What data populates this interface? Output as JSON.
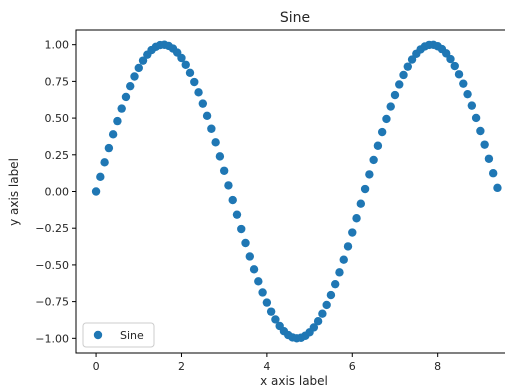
{
  "chart_data": {
    "type": "scatter",
    "title": "Sine",
    "xlabel": "x axis label",
    "ylabel": "y axis label",
    "xlim": [
      -0.47,
      9.6
    ],
    "ylim": [
      -1.1,
      1.1
    ],
    "xticks": [
      0,
      2,
      4,
      6,
      8
    ],
    "yticks": [
      -1.0,
      -0.75,
      -0.5,
      -0.25,
      0.0,
      0.25,
      0.5,
      0.75,
      1.0
    ],
    "xtick_labels": [
      "0",
      "2",
      "4",
      "6",
      "8"
    ],
    "ytick_labels": [
      "−1.00",
      "−0.75",
      "−0.50",
      "−0.25",
      "0.00",
      "0.25",
      "0.50",
      "0.75",
      "1.00"
    ],
    "grid": false,
    "legend_position": "lower-left",
    "marker_color": "#1f77b4",
    "series": [
      {
        "name": "Sine",
        "x_start": 0.0,
        "x_step": 0.1,
        "count": 95,
        "function": "sin"
      }
    ]
  }
}
